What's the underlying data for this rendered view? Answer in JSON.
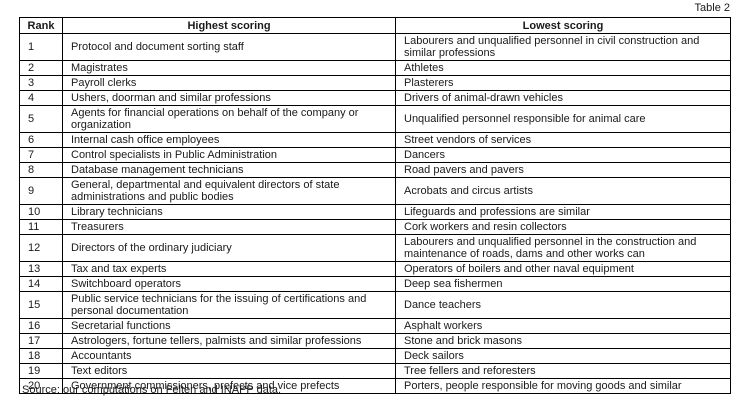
{
  "caption": "Table 2",
  "table": {
    "headers": {
      "rank": "Rank",
      "highest": "Highest scoring",
      "lowest": "Lowest scoring"
    },
    "rows": [
      {
        "rank": "1",
        "highest": "Protocol and document sorting staff",
        "lowest": "Labourers and unqualified personnel in civil construction and similar professions"
      },
      {
        "rank": "2",
        "highest": "Magistrates",
        "lowest": "Athletes"
      },
      {
        "rank": "3",
        "highest": "Payroll clerks",
        "lowest": "Plasterers"
      },
      {
        "rank": "4",
        "highest": "Ushers, doorman and similar professions",
        "lowest": "Drivers of animal-drawn vehicles"
      },
      {
        "rank": "5",
        "highest": "Agents for financial operations on behalf of the company or organization",
        "lowest": "Unqualified personnel responsible for animal care"
      },
      {
        "rank": "6",
        "highest": "Internal cash office employees",
        "lowest": "Street vendors of services"
      },
      {
        "rank": "7",
        "highest": "Control specialists in Public Administration",
        "lowest": "Dancers"
      },
      {
        "rank": "8",
        "highest": "Database management technicians",
        "lowest": "Road pavers and pavers"
      },
      {
        "rank": "9",
        "highest": "General, departmental and equivalent directors of state administrations and public bodies",
        "lowest": "Acrobats and circus artists"
      },
      {
        "rank": "10",
        "highest": "Library technicians",
        "lowest": "Lifeguards and professions are similar"
      },
      {
        "rank": "11",
        "highest": "Treasurers",
        "lowest": "Cork workers and resin collectors"
      },
      {
        "rank": "12",
        "highest": "Directors of the ordinary judiciary",
        "lowest": "Labourers and unqualified personnel in the construction and maintenance of roads, dams and other works can"
      },
      {
        "rank": "13",
        "highest": "Tax and tax experts",
        "lowest": "Operators of boilers and other naval equipment"
      },
      {
        "rank": "14",
        "highest": "Switchboard operators",
        "lowest": "Deep sea fishermen"
      },
      {
        "rank": "15",
        "highest": "Public service technicians for the issuing of certifications and personal documentation",
        "lowest": "Dance teachers"
      },
      {
        "rank": "16",
        "highest": "Secretarial functions",
        "lowest": "Asphalt workers"
      },
      {
        "rank": "17",
        "highest": "Astrologers, fortune tellers, palmists and similar professions",
        "lowest": "Stone and brick masons"
      },
      {
        "rank": "18",
        "highest": "Accountants",
        "lowest": "Deck sailors"
      },
      {
        "rank": "19",
        "highest": "Text editors",
        "lowest": "Tree fellers and reforesters"
      },
      {
        "rank": "20",
        "highest": "Government commissioners, prefects and vice prefects",
        "lowest": "Porters, people responsible for moving goods and similar"
      }
    ]
  },
  "source_note": "Source: our computations on Felten and INAPP data.",
  "colors": {
    "text": "#1a1a1a",
    "border": "#000000",
    "background": "#ffffff"
  }
}
